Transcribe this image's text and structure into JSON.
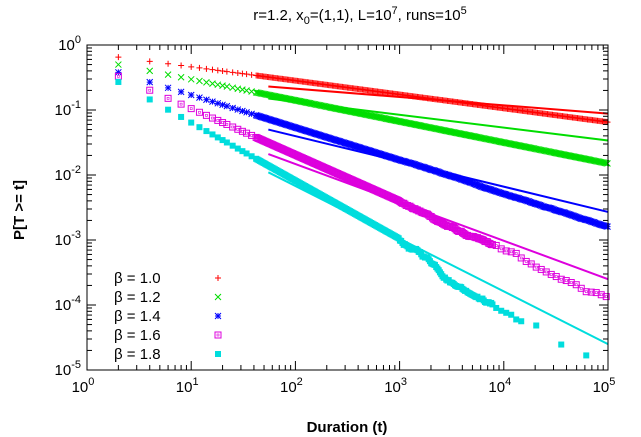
{
  "chart_data": {
    "type": "scatter",
    "title_parts": [
      "r=1.2, x",
      "0",
      "=(1,1), L=10",
      "7",
      ", runs=10",
      "5"
    ],
    "xlabel": "Duration (t)",
    "ylabel": "P[T >= t]",
    "xscale": "log",
    "yscale": "log",
    "xlim": [
      1,
      100000
    ],
    "ylim": [
      1e-05,
      1
    ],
    "grid": false,
    "legend_position": "bottom-left",
    "x_tick_labels": [
      {
        "base": "10",
        "exp": "0"
      },
      {
        "base": "10",
        "exp": "1"
      },
      {
        "base": "10",
        "exp": "2"
      },
      {
        "base": "10",
        "exp": "3"
      },
      {
        "base": "10",
        "exp": "4"
      },
      {
        "base": "10",
        "exp": "5"
      }
    ],
    "y_tick_labels": [
      {
        "base": "10",
        "exp": "-5"
      },
      {
        "base": "10",
        "exp": "-4"
      },
      {
        "base": "10",
        "exp": "-3"
      },
      {
        "base": "10",
        "exp": "-2"
      },
      {
        "base": "10",
        "exp": "-1"
      },
      {
        "base": "10",
        "exp": "0"
      }
    ],
    "series": [
      {
        "name": "β = 1.0",
        "marker": "plus",
        "color": "#ff0000",
        "y_at_2": 0.65,
        "y_at_1e5": 0.065,
        "noise": 0.0,
        "line": {
          "x": [
            55,
            100000
          ],
          "y": [
            0.23,
            0.088
          ]
        }
      },
      {
        "name": "β = 1.2",
        "marker": "cross",
        "color": "#00dd00",
        "y_at_2": 0.5,
        "y_at_1e5": 0.015,
        "noise": 0.0,
        "line": {
          "x": [
            55,
            100000
          ],
          "y": [
            0.15,
            0.034
          ]
        }
      },
      {
        "name": "β = 1.4",
        "marker": "star",
        "color": "#0000ff",
        "y_at_2": 0.38,
        "y_at_1e5": 0.0017,
        "noise": 0.01,
        "line": {
          "x": [
            55,
            100000
          ],
          "y": [
            0.05,
            0.0027
          ]
        }
      },
      {
        "name": "β = 1.6",
        "marker": "box",
        "color": "#dd00dd",
        "y_at_2": 0.33,
        "y_at_1e5": 0.00015,
        "noise": 0.04,
        "line": {
          "x": [
            55,
            100000
          ],
          "y": [
            0.021,
            0.00025
          ]
        }
      },
      {
        "name": "β = 1.8",
        "marker": "filledbox",
        "color": "#00dddd",
        "y_at_2": 0.27,
        "y_at_1e5": 1.7e-05,
        "noise": 0.08,
        "line": {
          "x": [
            55,
            100000
          ],
          "y": [
            0.011,
            2.5e-05
          ]
        }
      }
    ]
  }
}
